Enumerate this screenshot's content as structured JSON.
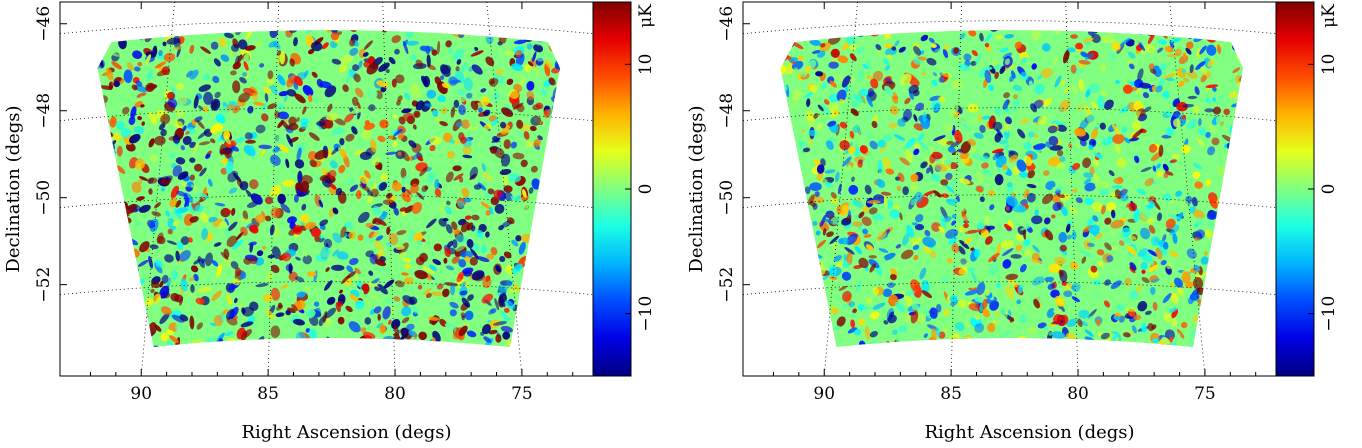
{
  "chart_data": [
    {
      "type": "heatmap",
      "xlabel": "Right Ascension (degs)",
      "ylabel": "Declination (degs)",
      "x_ticks": [
        90,
        85,
        80,
        75
      ],
      "y_ticks": [
        -46,
        -48,
        -50,
        -52
      ],
      "xlim": [
        93.2,
        72.2
      ],
      "ylim": [
        -54.1,
        -45.5
      ],
      "colorbar": {
        "unit": "μK",
        "ticks": [
          10,
          0,
          -10
        ],
        "range": [
          -15,
          15
        ]
      },
      "field": {
        "ra_range": [
          91.8,
          73.5
        ],
        "dec_range": [
          -53.8,
          -46.1
        ]
      },
      "amplitude": 1.0,
      "seed": 7,
      "grid": true
    },
    {
      "type": "heatmap",
      "xlabel": "Right Ascension (degs)",
      "ylabel": "Declination (degs)",
      "x_ticks": [
        90,
        85,
        80,
        75
      ],
      "y_ticks": [
        -46,
        -48,
        -50,
        -52
      ],
      "xlim": [
        93.2,
        72.2
      ],
      "ylim": [
        -54.1,
        -45.5
      ],
      "colorbar": {
        "unit": "μK",
        "ticks": [
          10,
          0,
          -10
        ],
        "range": [
          -15,
          15
        ]
      },
      "field": {
        "ra_range": [
          91.8,
          73.5
        ],
        "dec_range": [
          -53.8,
          -46.1
        ]
      },
      "amplitude": 0.6,
      "seed": 23,
      "grid": true
    }
  ]
}
